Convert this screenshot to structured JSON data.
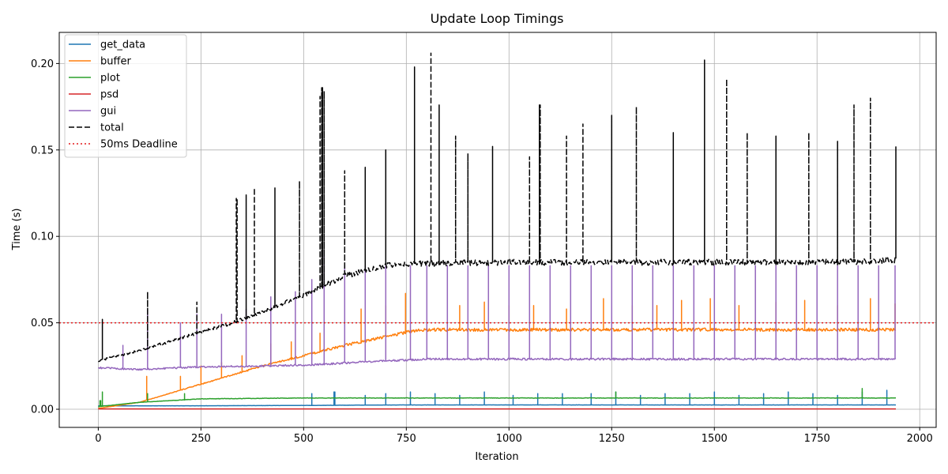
{
  "chart_data": {
    "type": "line",
    "title": "Update Loop Timings",
    "xlabel": "Iteration",
    "ylabel": "Time (s)",
    "xlim": [
      -95,
      2040
    ],
    "ylim": [
      -0.0105,
      0.218
    ],
    "x_ticks": [
      0,
      250,
      500,
      750,
      1000,
      1250,
      1500,
      1750,
      2000
    ],
    "x_tick_labels": [
      "0",
      "250",
      "500",
      "750",
      "1000",
      "1250",
      "1500",
      "1750",
      "2000"
    ],
    "y_ticks": [
      0.0,
      0.05,
      0.1,
      0.15,
      0.2
    ],
    "y_tick_labels": [
      "0.00",
      "0.05",
      "0.10",
      "0.15",
      "0.20"
    ],
    "grid": true,
    "legend_position": "top-left",
    "x_range": [
      0,
      1943
    ],
    "series": [
      {
        "name": "get_data",
        "color": "#1f77b4",
        "style": "solid",
        "points": [
          [
            0,
            0.002
          ],
          [
            250,
            0.002
          ],
          [
            500,
            0.0022
          ],
          [
            750,
            0.0025
          ],
          [
            1000,
            0.0025
          ],
          [
            1250,
            0.0025
          ],
          [
            1500,
            0.0025
          ],
          [
            1750,
            0.0025
          ],
          [
            1943,
            0.0025
          ]
        ],
        "spikes": [
          [
            520,
            0.009
          ],
          [
            575,
            0.01
          ],
          [
            650,
            0.008
          ],
          [
            700,
            0.009
          ],
          [
            760,
            0.01
          ],
          [
            820,
            0.009
          ],
          [
            880,
            0.008
          ],
          [
            940,
            0.01
          ],
          [
            1010,
            0.008
          ],
          [
            1070,
            0.009
          ],
          [
            1130,
            0.009
          ],
          [
            1200,
            0.009
          ],
          [
            1260,
            0.01
          ],
          [
            1320,
            0.008
          ],
          [
            1380,
            0.009
          ],
          [
            1440,
            0.009
          ],
          [
            1500,
            0.01
          ],
          [
            1560,
            0.008
          ],
          [
            1620,
            0.009
          ],
          [
            1680,
            0.01
          ],
          [
            1740,
            0.009
          ],
          [
            1800,
            0.008
          ],
          [
            1860,
            0.01
          ],
          [
            1920,
            0.011
          ]
        ]
      },
      {
        "name": "buffer",
        "color": "#ff7f0e",
        "style": "solid",
        "points": [
          [
            0,
            0.0005
          ],
          [
            100,
            0.004
          ],
          [
            200,
            0.011
          ],
          [
            300,
            0.018
          ],
          [
            400,
            0.025
          ],
          [
            500,
            0.031
          ],
          [
            600,
            0.037
          ],
          [
            700,
            0.042
          ],
          [
            780,
            0.046
          ],
          [
            1000,
            0.046
          ],
          [
            1250,
            0.046
          ],
          [
            1500,
            0.046
          ],
          [
            1750,
            0.046
          ],
          [
            1943,
            0.046
          ]
        ],
        "spikes": [
          [
            118,
            0.019
          ],
          [
            200,
            0.019
          ],
          [
            250,
            0.025
          ],
          [
            300,
            0.027
          ],
          [
            350,
            0.031
          ],
          [
            420,
            0.038
          ],
          [
            470,
            0.039
          ],
          [
            540,
            0.044
          ],
          [
            640,
            0.058
          ],
          [
            700,
            0.06
          ],
          [
            748,
            0.067
          ],
          [
            880,
            0.06
          ],
          [
            940,
            0.062
          ],
          [
            1000,
            0.06
          ],
          [
            1060,
            0.06
          ],
          [
            1140,
            0.058
          ],
          [
            1230,
            0.064
          ],
          [
            1300,
            0.06
          ],
          [
            1360,
            0.06
          ],
          [
            1420,
            0.063
          ],
          [
            1490,
            0.064
          ],
          [
            1560,
            0.06
          ],
          [
            1650,
            0.062
          ],
          [
            1720,
            0.063
          ],
          [
            1800,
            0.06
          ],
          [
            1880,
            0.064
          ],
          [
            1940,
            0.061
          ]
        ]
      },
      {
        "name": "plot",
        "color": "#2ca02c",
        "style": "solid",
        "points": [
          [
            0,
            0.0015
          ],
          [
            100,
            0.004
          ],
          [
            250,
            0.006
          ],
          [
            500,
            0.0065
          ],
          [
            750,
            0.0065
          ],
          [
            1000,
            0.0065
          ],
          [
            1250,
            0.0065
          ],
          [
            1500,
            0.0065
          ],
          [
            1750,
            0.0065
          ],
          [
            1943,
            0.0065
          ]
        ],
        "spikes": [
          [
            5,
            0.005
          ],
          [
            10,
            0.01
          ],
          [
            120,
            0.009
          ],
          [
            210,
            0.009
          ],
          [
            1260,
            0.01
          ],
          [
            1860,
            0.012
          ]
        ]
      },
      {
        "name": "psd",
        "color": "#d62728",
        "style": "solid",
        "points": [
          [
            0,
            0.0002
          ],
          [
            1943,
            0.0002
          ]
        ],
        "spikes": []
      },
      {
        "name": "gui",
        "color": "#9467bd",
        "style": "solid",
        "points": [
          [
            0,
            0.024
          ],
          [
            100,
            0.023
          ],
          [
            250,
            0.0245
          ],
          [
            400,
            0.025
          ],
          [
            500,
            0.0255
          ],
          [
            550,
            0.026
          ],
          [
            650,
            0.0275
          ],
          [
            750,
            0.0285
          ],
          [
            800,
            0.029
          ],
          [
            1000,
            0.029
          ],
          [
            1250,
            0.029
          ],
          [
            1500,
            0.029
          ],
          [
            1750,
            0.029
          ],
          [
            1943,
            0.029
          ]
        ],
        "spikes": [
          [
            60,
            0.037
          ],
          [
            120,
            0.058
          ],
          [
            200,
            0.05
          ],
          [
            240,
            0.055
          ],
          [
            300,
            0.055
          ],
          [
            360,
            0.058
          ],
          [
            420,
            0.065
          ],
          [
            480,
            0.068
          ],
          [
            520,
            0.075
          ],
          [
            550,
            0.092
          ],
          [
            600,
            0.083
          ],
          [
            650,
            0.083
          ],
          [
            700,
            0.083
          ],
          [
            760,
            0.083
          ],
          [
            800,
            0.083
          ],
          [
            850,
            0.083
          ],
          [
            900,
            0.083
          ],
          [
            950,
            0.083
          ],
          [
            1000,
            0.083
          ],
          [
            1050,
            0.083
          ],
          [
            1100,
            0.083
          ],
          [
            1150,
            0.083
          ],
          [
            1200,
            0.083
          ],
          [
            1250,
            0.083
          ],
          [
            1300,
            0.083
          ],
          [
            1350,
            0.083
          ],
          [
            1400,
            0.083
          ],
          [
            1450,
            0.083
          ],
          [
            1500,
            0.083
          ],
          [
            1550,
            0.083
          ],
          [
            1600,
            0.083
          ],
          [
            1650,
            0.083
          ],
          [
            1700,
            0.083
          ],
          [
            1750,
            0.083
          ],
          [
            1800,
            0.083
          ],
          [
            1850,
            0.083
          ],
          [
            1900,
            0.083
          ],
          [
            1940,
            0.083
          ]
        ]
      },
      {
        "name": "total",
        "color": "#000000",
        "style": "dashed",
        "points": [
          [
            0,
            0.028
          ],
          [
            50,
            0.031
          ],
          [
            100,
            0.034
          ],
          [
            200,
            0.041
          ],
          [
            300,
            0.048
          ],
          [
            400,
            0.056
          ],
          [
            500,
            0.066
          ],
          [
            600,
            0.077
          ],
          [
            700,
            0.083
          ],
          [
            750,
            0.084
          ],
          [
            1000,
            0.085
          ],
          [
            1250,
            0.085
          ],
          [
            1500,
            0.085
          ],
          [
            1750,
            0.085
          ],
          [
            1943,
            0.086
          ]
        ],
        "spikes": [
          [
            10,
            0.052
          ],
          [
            120,
            0.068
          ],
          [
            240,
            0.062
          ],
          [
            337,
            0.122
          ],
          [
            360,
            0.124
          ],
          [
            380,
            0.128
          ],
          [
            430,
            0.128
          ],
          [
            490,
            0.132
          ],
          [
            540,
            0.181
          ],
          [
            545,
            0.186
          ],
          [
            550,
            0.184
          ],
          [
            600,
            0.138
          ],
          [
            650,
            0.14
          ],
          [
            700,
            0.15
          ],
          [
            770,
            0.198
          ],
          [
            810,
            0.206
          ],
          [
            830,
            0.176
          ],
          [
            870,
            0.158
          ],
          [
            900,
            0.148
          ],
          [
            960,
            0.152
          ],
          [
            1050,
            0.146
          ],
          [
            1075,
            0.176
          ],
          [
            1140,
            0.158
          ],
          [
            1180,
            0.165
          ],
          [
            1250,
            0.17
          ],
          [
            1310,
            0.175
          ],
          [
            1400,
            0.16
          ],
          [
            1476,
            0.202
          ],
          [
            1530,
            0.191
          ],
          [
            1580,
            0.16
          ],
          [
            1650,
            0.158
          ],
          [
            1730,
            0.16
          ],
          [
            1800,
            0.155
          ],
          [
            1840,
            0.176
          ],
          [
            1880,
            0.18
          ],
          [
            1943,
            0.152
          ]
        ]
      }
    ],
    "reference_lines": [
      {
        "name": "50ms Deadline",
        "y": 0.05,
        "color": "#e41a1c",
        "style": "dotted"
      }
    ]
  }
}
